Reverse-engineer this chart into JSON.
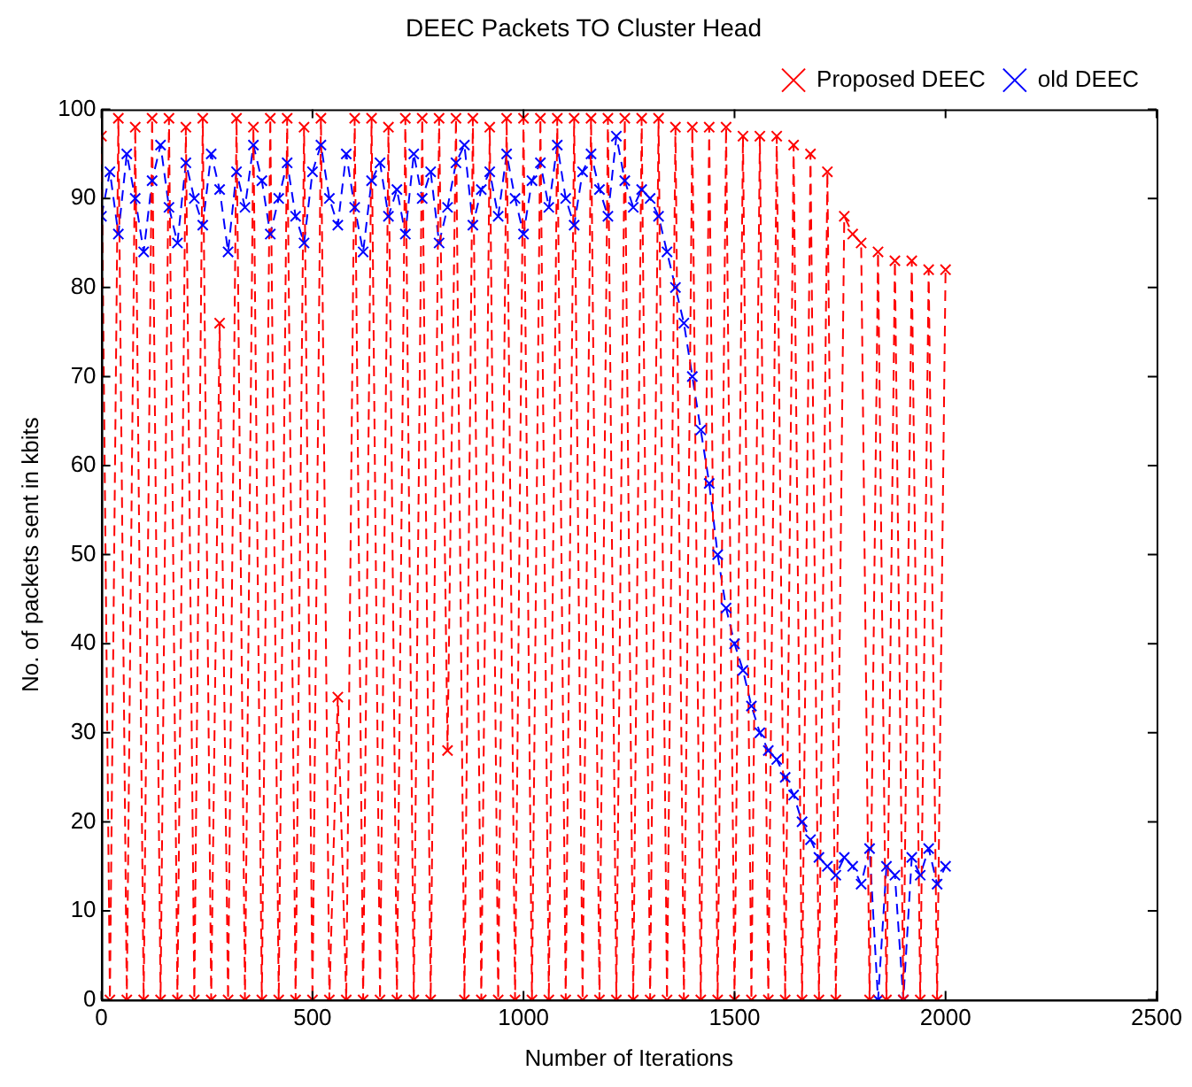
{
  "chart_data": {
    "type": "line",
    "title": "DEEC Packets TO Cluster Head",
    "xlabel": "Number of Iterations",
    "ylabel": "No. of packets sent in kbits",
    "x": [
      0,
      20,
      40,
      60,
      80,
      100,
      120,
      140,
      160,
      180,
      200,
      220,
      240,
      260,
      280,
      300,
      320,
      340,
      360,
      380,
      400,
      420,
      440,
      460,
      480,
      500,
      520,
      540,
      560,
      580,
      600,
      620,
      640,
      660,
      680,
      700,
      720,
      740,
      760,
      780,
      800,
      820,
      840,
      860,
      880,
      900,
      920,
      940,
      960,
      980,
      1000,
      1020,
      1040,
      1060,
      1080,
      1100,
      1120,
      1140,
      1160,
      1180,
      1200,
      1220,
      1240,
      1260,
      1280,
      1300,
      1320,
      1340,
      1360,
      1380,
      1400,
      1420,
      1440,
      1460,
      1480,
      1500,
      1520,
      1540,
      1560,
      1580,
      1600,
      1620,
      1640,
      1660,
      1680,
      1700,
      1720,
      1740,
      1760,
      1780,
      1800,
      1820,
      1840,
      1860,
      1880,
      1900,
      1920,
      1940,
      1960,
      1980,
      2000
    ],
    "series": [
      {
        "name": "Proposed DEEC",
        "color": "#ff0000",
        "values": [
          97,
          0,
          99,
          0,
          98,
          0,
          99,
          0,
          99,
          0,
          98,
          0,
          99,
          0,
          76,
          0,
          99,
          0,
          98,
          0,
          99,
          0,
          99,
          0,
          98,
          0,
          99,
          0,
          34,
          0,
          99,
          0,
          99,
          0,
          98,
          0,
          99,
          0,
          99,
          0,
          99,
          28,
          99,
          0,
          99,
          0,
          98,
          0,
          99,
          0,
          99,
          0,
          99,
          0,
          99,
          0,
          99,
          0,
          99,
          0,
          99,
          0,
          99,
          0,
          99,
          0,
          99,
          0,
          98,
          0,
          98,
          0,
          98,
          0,
          98,
          0,
          97,
          0,
          97,
          0,
          97,
          0,
          96,
          0,
          95,
          0,
          93,
          0,
          88,
          86,
          85,
          0,
          84,
          0,
          83,
          0,
          83,
          0,
          82,
          0,
          82
        ]
      },
      {
        "name": "old DEEC",
        "color": "#0000ff",
        "values": [
          88,
          93,
          86,
          95,
          90,
          84,
          92,
          96,
          89,
          85,
          94,
          90,
          87,
          95,
          91,
          84,
          93,
          89,
          96,
          92,
          86,
          90,
          94,
          88,
          85,
          93,
          96,
          90,
          87,
          95,
          89,
          84,
          92,
          94,
          88,
          91,
          86,
          95,
          90,
          93,
          85,
          89,
          94,
          96,
          87,
          91,
          93,
          88,
          95,
          90,
          86,
          92,
          94,
          89,
          96,
          90,
          87,
          93,
          95,
          91,
          88,
          97,
          92,
          89,
          91,
          90,
          88,
          84,
          80,
          76,
          70,
          64,
          58,
          50,
          44,
          40,
          37,
          33,
          30,
          28,
          27,
          25,
          23,
          20,
          18,
          16,
          15,
          14,
          16,
          15,
          13,
          17,
          0,
          15,
          14,
          0,
          16,
          14,
          17,
          13,
          15
        ]
      }
    ],
    "xlim": [
      0,
      2500
    ],
    "xticks": [
      0,
      500,
      1000,
      1500,
      2000,
      2500
    ],
    "ylim": [
      0,
      100
    ],
    "yticks": [
      0,
      10,
      20,
      30,
      40,
      50,
      60,
      70,
      80,
      90,
      100
    ],
    "grid": false,
    "legend": "top right",
    "marker": "cross",
    "line_style": "dashed"
  }
}
